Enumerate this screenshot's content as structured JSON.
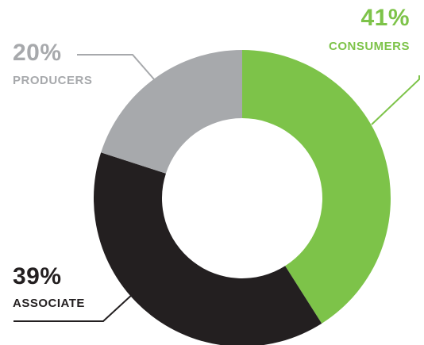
{
  "chart_data": {
    "type": "pie",
    "variant": "donut",
    "slices": [
      {
        "label": "CONSUMERS",
        "value": 41,
        "value_label": "41%",
        "color": "#7dc349"
      },
      {
        "label": "ASSOCIATE",
        "value": 39,
        "value_label": "39%",
        "color": "#231f20"
      },
      {
        "label": "PRODUCERS",
        "value": 20,
        "value_label": "20%",
        "color": "#a7a9ac"
      }
    ],
    "legend": "none"
  }
}
